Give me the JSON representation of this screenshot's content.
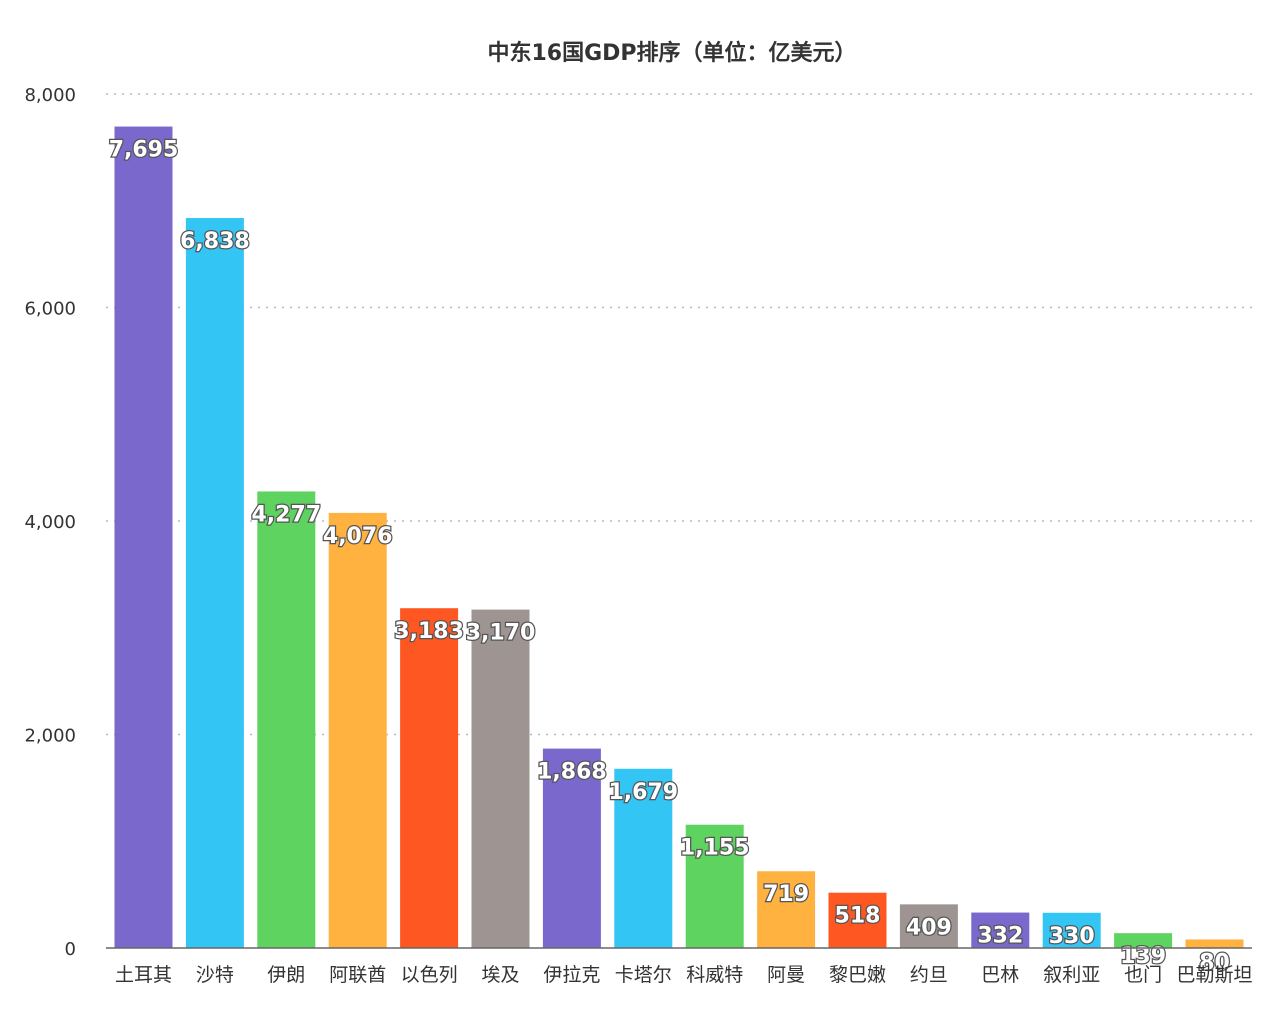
{
  "chart_data": {
    "type": "bar",
    "title": "中东16国GDP排序（单位：亿美元）",
    "xlabel": "",
    "ylabel": "",
    "ylim": [
      0,
      8000
    ],
    "yticks": [
      0,
      2000,
      4000,
      6000,
      8000
    ],
    "ytick_labels": [
      "0",
      "2,000",
      "4,000",
      "6,000",
      "8,000"
    ],
    "grid": true,
    "categories": [
      "土耳其",
      "沙特",
      "伊朗",
      "阿联酋",
      "以色列",
      "埃及",
      "伊拉克",
      "卡塔尔",
      "科威特",
      "阿曼",
      "黎巴嫩",
      "约旦",
      "巴林",
      "叙利亚",
      "也门",
      "巴勒斯坦"
    ],
    "values": [
      7695,
      6838,
      4277,
      4076,
      3183,
      3170,
      1868,
      1679,
      1155,
      719,
      518,
      409,
      332,
      330,
      139,
      80
    ],
    "value_labels": [
      "7,695",
      "6,838",
      "4,277",
      "4,076",
      "3,183",
      "3,170",
      "1,868",
      "1,679",
      "1,155",
      "719",
      "518",
      "409",
      "332",
      "330",
      "139",
      "80"
    ],
    "colors": [
      "#7b68cc",
      "#33c5f3",
      "#5fd35f",
      "#ffb240",
      "#ff5722",
      "#9e9592",
      "#7b68cc",
      "#33c5f3",
      "#5fd35f",
      "#ffb240",
      "#ff5722",
      "#9e9592",
      "#7b68cc",
      "#33c5f3",
      "#5fd35f",
      "#ffb240"
    ]
  }
}
